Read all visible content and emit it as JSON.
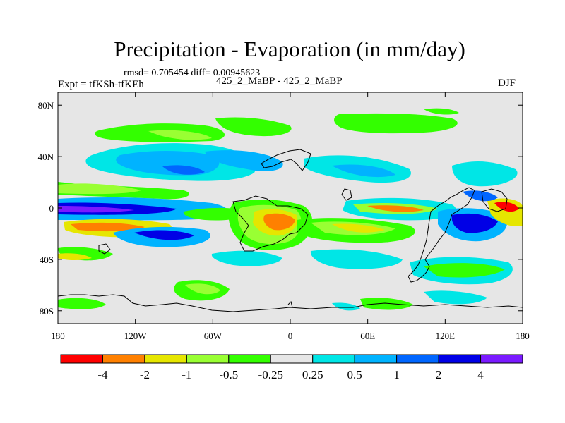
{
  "title": "Precipitation - Evaporation (in mm/day)",
  "stats": "rmsd= 0.705454  diff= 0.00945623",
  "left_label": "Expt = tfKSh-tfKEh",
  "center_label": "425_2_MaBP - 425_2_MaBP",
  "right_label": "DJF",
  "map": {
    "lon_range": [
      -180,
      180
    ],
    "lat_range": [
      -90,
      90
    ],
    "projection": "cylindrical equidistant",
    "lat_ticks": [
      {
        "value": 80,
        "label": "80N"
      },
      {
        "value": 40,
        "label": "40N"
      },
      {
        "value": 0,
        "label": "0"
      },
      {
        "value": -40,
        "label": "40S"
      },
      {
        "value": -80,
        "label": "80S"
      }
    ],
    "lon_ticks": [
      {
        "value": -180,
        "label": "180"
      },
      {
        "value": -120,
        "label": "120W"
      },
      {
        "value": -60,
        "label": "60W"
      },
      {
        "value": 0,
        "label": "0"
      },
      {
        "value": 60,
        "label": "60E"
      },
      {
        "value": 120,
        "label": "120E"
      },
      {
        "value": 180,
        "label": "180"
      }
    ]
  },
  "colorbar": {
    "colors": [
      "#ff0000",
      "#ff8000",
      "#e6e600",
      "#99ff33",
      "#33ff00",
      "#e6e6e6",
      "#00e6e6",
      "#00b3ff",
      "#0066ff",
      "#0000e6",
      "#7a1aff"
    ],
    "labels": [
      "-4",
      "-2",
      "-1",
      "-0.5",
      "-0.25",
      "0.25",
      "0.5",
      "1",
      "2",
      "4"
    ]
  }
}
